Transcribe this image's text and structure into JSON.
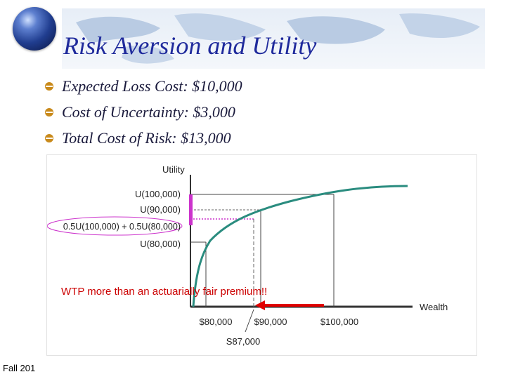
{
  "title": "Risk Aversion and Utility",
  "bullets": [
    {
      "text": "Expected Loss Cost: $10,000"
    },
    {
      "text": "Cost of Uncertainty: $3,000"
    },
    {
      "text": "Total Cost of Risk: $13,000"
    }
  ],
  "figure": {
    "y_axis_label": "Utility",
    "x_axis_label": "Wealth",
    "y_labels": {
      "u100": "U(100,000)",
      "u90": "U(90,000)",
      "expected": "0.5U(100,000) + 0.5U(80,000)",
      "u80": "U(80,000)"
    },
    "x_labels": {
      "x80": "$80,000",
      "x90": "$90,000",
      "x100": "$100,000",
      "x87": "S87,000"
    },
    "annotation": "WTP more than an actuarially fair premium!!",
    "colors": {
      "curve": "#2a8c7f",
      "highlight": "#cc33cc",
      "arrow": "#e00000",
      "annotation": "#cc0000"
    }
  },
  "footer": "Fall 201"
}
